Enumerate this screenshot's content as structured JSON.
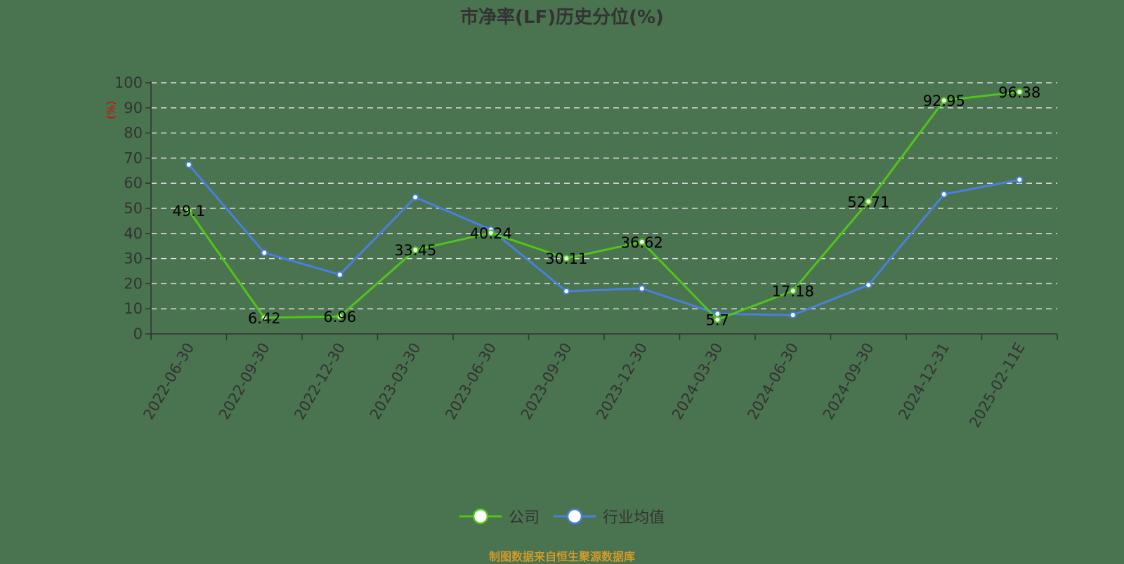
{
  "title": "市净率(LF)历史分位(%)",
  "source": "制图数据来自恒生聚源数据库",
  "legend": [
    {
      "label": "公司",
      "color": "#52c41a"
    },
    {
      "label": "行业均值",
      "color": "#4a7fe0"
    }
  ],
  "chart_data": {
    "type": "line",
    "title": "市净率(LF)历史分位(%)",
    "xlabel": "",
    "ylabel": "(%)",
    "ylim": [
      0,
      100
    ],
    "yticks": [
      0,
      10,
      20,
      30,
      40,
      50,
      60,
      70,
      80,
      90,
      100
    ],
    "grid": true,
    "legend_position": "bottom",
    "categories": [
      "2022-06-30",
      "2022-09-30",
      "2022-12-30",
      "2023-03-30",
      "2023-06-30",
      "2023-09-30",
      "2023-12-30",
      "2024-03-30",
      "2024-06-30",
      "2024-09-30",
      "2024-12-31",
      "2025-02-11E"
    ],
    "series": [
      {
        "name": "公司",
        "color": "#52c41a",
        "show_labels": true,
        "values": [
          49.1,
          6.42,
          6.96,
          33.45,
          40.24,
          30.11,
          36.62,
          5.7,
          17.18,
          52.71,
          92.95,
          96.38
        ]
      },
      {
        "name": "行业均值",
        "color": "#4a7fe0",
        "show_labels": false,
        "values": [
          67.4,
          32.3,
          23.6,
          54.4,
          41.5,
          17.0,
          18.1,
          8.0,
          7.5,
          19.5,
          55.6,
          61.4
        ]
      }
    ]
  }
}
